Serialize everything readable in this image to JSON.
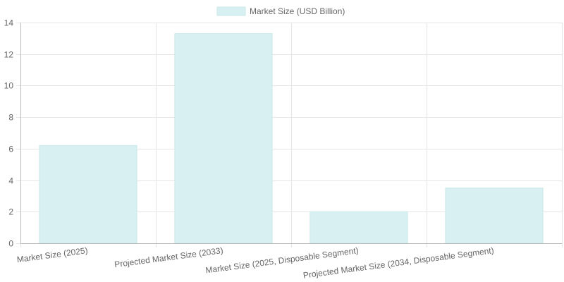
{
  "chart_data": {
    "type": "bar",
    "categories": [
      "Market Size (2025)",
      "Projected Market Size (2033)",
      "Market Size (2025, Disposable Segment)",
      "Projected Market Size (2034, Disposable Segment)"
    ],
    "series": [
      {
        "name": "Market Size (USD Billion)",
        "values": [
          6.2,
          13.3,
          2.0,
          3.5
        ]
      }
    ],
    "ylim": [
      0,
      14
    ],
    "yticks": [
      0,
      2,
      4,
      6,
      8,
      10,
      12,
      14
    ],
    "grid": true,
    "legend": "top-center",
    "colors": {
      "bar_fill": "#d8f0f1",
      "bar_stroke": "#c9e9ea",
      "grid": "#e5e5e5",
      "axis": "#bbbbbb",
      "text": "#666666"
    }
  }
}
